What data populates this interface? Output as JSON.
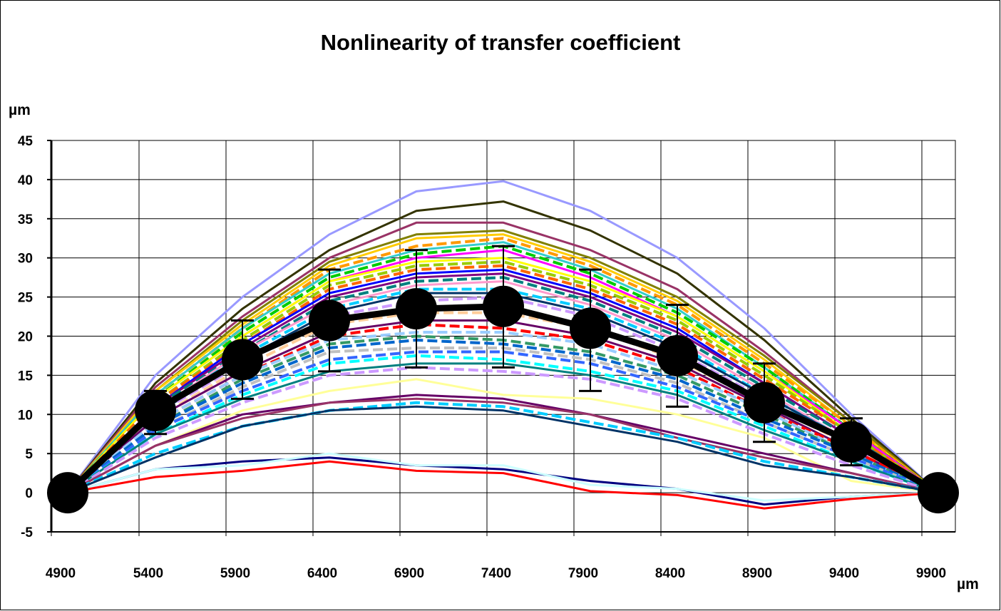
{
  "chart_data": {
    "type": "line",
    "title": "Nonlinearity of transfer coefficient",
    "xlabel": "µm",
    "ylabel": "µm",
    "xlim": [
      4900,
      10100
    ],
    "ylim": [
      -5,
      45
    ],
    "x_ticks": [
      "4900",
      "5400",
      "5900",
      "6400",
      "6900",
      "7400",
      "7900",
      "8400",
      "8900",
      "9400",
      "9900"
    ],
    "y_ticks": [
      "-5",
      "0",
      "5",
      "10",
      "15",
      "20",
      "25",
      "30",
      "35",
      "40",
      "45"
    ],
    "grid": true,
    "legend": "none",
    "x": [
      5000,
      5500,
      6000,
      6500,
      7000,
      7500,
      8000,
      8500,
      9000,
      9500,
      10000
    ],
    "mean_series": {
      "values": [
        0,
        10.5,
        17,
        22,
        23.5,
        23.8,
        21,
        17.5,
        11.5,
        6.5,
        0
      ],
      "err_upper": [
        0,
        13,
        22,
        28.5,
        31,
        31.5,
        28.5,
        24,
        16.5,
        9.5,
        0
      ],
      "err_lower": [
        0,
        7.5,
        12,
        15.5,
        16,
        16,
        13,
        11,
        6.5,
        3.5,
        0
      ],
      "color": "#000000"
    },
    "series": [
      {
        "values": [
          0,
          15,
          25,
          33,
          38.5,
          39.8,
          36,
          30,
          21,
          10,
          0
        ],
        "color": "#9999ff",
        "dashed": false
      },
      {
        "values": [
          0,
          14,
          23.5,
          31,
          36,
          37.2,
          33.5,
          28,
          19.5,
          9.5,
          0
        ],
        "color": "#333300",
        "dashed": false
      },
      {
        "values": [
          0,
          13.5,
          22.5,
          30,
          34.5,
          34.5,
          31,
          26,
          18,
          9,
          0
        ],
        "color": "#993366",
        "dashed": false
      },
      {
        "values": [
          0,
          13,
          22,
          29.5,
          33,
          33.5,
          30,
          25,
          17.5,
          9,
          0
        ],
        "color": "#808000",
        "dashed": false
      },
      {
        "values": [
          0,
          13,
          21.5,
          29,
          32.5,
          33,
          29.5,
          24.5,
          17,
          8.5,
          0
        ],
        "color": "#ffcc00",
        "dashed": false
      },
      {
        "values": [
          0,
          12.5,
          21,
          28.5,
          31.5,
          32.5,
          29,
          24,
          16.5,
          8.5,
          0
        ],
        "color": "#ff9900",
        "dashed": true
      },
      {
        "values": [
          0,
          12.5,
          21,
          28,
          31,
          32,
          28.5,
          23.5,
          16,
          8,
          0
        ],
        "color": "#33cccc",
        "dashed": false
      },
      {
        "values": [
          0,
          12,
          20.5,
          27.5,
          30.5,
          31.5,
          28,
          23,
          16,
          8,
          0
        ],
        "color": "#00cc00",
        "dashed": true
      },
      {
        "values": [
          0,
          12,
          20,
          27,
          30,
          31,
          27.5,
          22.5,
          15.5,
          8,
          0
        ],
        "color": "#ff00ff",
        "dashed": false
      },
      {
        "values": [
          0,
          12,
          20,
          27,
          29.5,
          30,
          27,
          22.5,
          15.5,
          7.5,
          0
        ],
        "color": "#ffff00",
        "dashed": false
      },
      {
        "values": [
          0,
          11.5,
          19.5,
          26.5,
          29,
          29.5,
          26.5,
          22,
          15,
          7.5,
          0
        ],
        "color": "#99cc00",
        "dashed": true
      },
      {
        "values": [
          0,
          11.5,
          19,
          26,
          28.5,
          29,
          26,
          21.5,
          14.5,
          7.5,
          0
        ],
        "color": "#ff6600",
        "dashed": true
      },
      {
        "values": [
          0,
          11,
          19,
          25.5,
          28,
          28.5,
          25.5,
          21,
          14,
          7,
          0
        ],
        "color": "#0000ff",
        "dashed": false
      },
      {
        "values": [
          0,
          11,
          18.5,
          25,
          27.5,
          28,
          25,
          20.5,
          14,
          7,
          0
        ],
        "color": "#800080",
        "dashed": false
      },
      {
        "values": [
          0,
          11,
          18,
          24.5,
          27,
          27.5,
          24.5,
          20,
          13.5,
          7,
          0
        ],
        "color": "#008080",
        "dashed": true
      },
      {
        "values": [
          0,
          10.5,
          18,
          24,
          26.5,
          27,
          24,
          19.5,
          13,
          6.5,
          0
        ],
        "color": "#ff99cc",
        "dashed": false
      },
      {
        "values": [
          0,
          10.5,
          17.5,
          23.5,
          26,
          26,
          23.5,
          19,
          12.5,
          6.5,
          0
        ],
        "color": "#00ccff",
        "dashed": true
      },
      {
        "values": [
          0,
          10,
          17,
          23,
          25.5,
          25.5,
          23,
          18.5,
          12.5,
          6.5,
          0
        ],
        "color": "#003366",
        "dashed": false
      },
      {
        "values": [
          0,
          10,
          16.5,
          22.5,
          24.5,
          25,
          22.5,
          18,
          12,
          6,
          0
        ],
        "color": "#cc99ff",
        "dashed": true
      },
      {
        "values": [
          0,
          9.5,
          16,
          21.5,
          23,
          23,
          21,
          17,
          11.5,
          6,
          0
        ],
        "color": "#ffcc99",
        "dashed": true
      },
      {
        "values": [
          0,
          9.5,
          15.5,
          20.5,
          22,
          22,
          20,
          16.5,
          11,
          5.5,
          0
        ],
        "color": "#660066",
        "dashed": false
      },
      {
        "values": [
          0,
          9,
          15,
          20,
          21.5,
          21,
          19.5,
          16,
          10.5,
          5.5,
          0
        ],
        "color": "#ff0000",
        "dashed": true
      },
      {
        "values": [
          0,
          9,
          15,
          19.5,
          20.5,
          20.5,
          19,
          15.5,
          10.5,
          5,
          0
        ],
        "color": "#99ccff",
        "dashed": true
      },
      {
        "values": [
          0,
          8.5,
          14.5,
          19,
          20,
          19.5,
          18,
          15,
          10,
          5,
          0
        ],
        "color": "#339966",
        "dashed": true
      },
      {
        "values": [
          0,
          8.5,
          14,
          18.5,
          19.5,
          19,
          17.5,
          14.5,
          9.5,
          5,
          0
        ],
        "color": "#0066cc",
        "dashed": true
      },
      {
        "values": [
          0,
          8,
          13.5,
          18,
          18.5,
          18.5,
          17,
          14,
          9,
          4.5,
          0
        ],
        "color": "#c0c0c0",
        "dashed": true
      },
      {
        "values": [
          0,
          8,
          13,
          17,
          18,
          18,
          16.5,
          13.5,
          9,
          4.5,
          0
        ],
        "color": "#3366ff",
        "dashed": true
      },
      {
        "values": [
          0,
          7.5,
          12.5,
          16.5,
          17.5,
          17,
          15.5,
          13,
          8.5,
          4,
          0
        ],
        "color": "#00ffff",
        "dashed": true
      },
      {
        "values": [
          0,
          7.5,
          12,
          15.5,
          16.5,
          16.5,
          15,
          12.5,
          8,
          4,
          0
        ],
        "color": "#008080",
        "dashed": false
      },
      {
        "values": [
          0,
          7,
          11.5,
          15,
          16,
          15.5,
          14.5,
          12,
          7.5,
          3.5,
          0
        ],
        "color": "#cc99ff",
        "dashed": true
      },
      {
        "values": [
          0,
          6,
          10.5,
          13,
          14.5,
          12.5,
          12,
          10,
          7,
          1.5,
          0
        ],
        "color": "#ffff99",
        "dashed": false
      },
      {
        "values": [
          0,
          6,
          10,
          11.5,
          12.5,
          12,
          10,
          7.5,
          5,
          2.5,
          0
        ],
        "color": "#660066",
        "dashed": false
      },
      {
        "values": [
          0,
          6,
          9.5,
          11.5,
          12,
          11.5,
          10,
          7,
          4.5,
          2.5,
          0
        ],
        "color": "#993366",
        "dashed": false
      },
      {
        "values": [
          0,
          5,
          8.5,
          10.5,
          11.5,
          11,
          9,
          7,
          4,
          2,
          0
        ],
        "color": "#00ccff",
        "dashed": true
      },
      {
        "values": [
          0,
          4.5,
          8.5,
          10.5,
          11,
          10.5,
          8.5,
          6.5,
          3.5,
          2,
          0
        ],
        "color": "#003366",
        "dashed": false
      },
      {
        "values": [
          0,
          3,
          4,
          4.5,
          3.5,
          3,
          1.5,
          0.5,
          -1.5,
          -0.5,
          0
        ],
        "color": "#000080",
        "dashed": false
      },
      {
        "values": [
          0,
          3,
          3.5,
          5,
          3.5,
          3.5,
          1,
          0.5,
          -1,
          -0.5,
          0
        ],
        "color": "#ccffff",
        "dashed": false
      },
      {
        "values": [
          0,
          2,
          2.8,
          4,
          2.8,
          2.5,
          0.2,
          -0.3,
          -2,
          -0.8,
          0
        ],
        "color": "#ff0000",
        "dashed": false
      }
    ]
  }
}
